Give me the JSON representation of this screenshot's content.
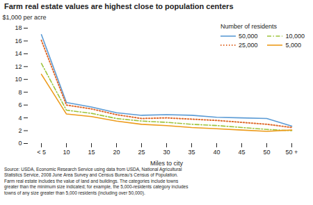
{
  "chart_data": {
    "type": "line",
    "title": "Farm real estate values are highest close to population centers",
    "xlabel": "Miles to city",
    "ylabel": "$1,000 per acre",
    "categories": [
      "< 5",
      "10",
      "15",
      "20",
      "25",
      "30",
      "35",
      "40",
      "45",
      "50",
      "50 +"
    ],
    "ylim": [
      0,
      18
    ],
    "yticks": [
      0,
      2,
      4,
      6,
      8,
      10,
      12,
      14,
      16,
      18
    ],
    "grid": false,
    "legend": "upper right",
    "legend_title": "Number of residents",
    "series": [
      {
        "name": "50,000",
        "color": "#5b9bd5",
        "line_style": "solid",
        "values": [
          17.0,
          6.4,
          5.7,
          4.8,
          4.4,
          4.5,
          4.4,
          4.1,
          4.0,
          3.9,
          2.7
        ]
      },
      {
        "name": "25,000",
        "color": "#e06c2e",
        "line_style": "dotted",
        "values": [
          16.1,
          6.0,
          5.4,
          4.5,
          3.9,
          4.0,
          3.8,
          3.6,
          3.3,
          3.0,
          2.5
        ]
      },
      {
        "name": "10,000",
        "color": "#9dc33b",
        "line_style": "dashdot",
        "values": [
          12.5,
          5.2,
          4.7,
          3.9,
          3.5,
          3.3,
          3.0,
          2.8,
          2.5,
          2.2,
          2.0
        ]
      },
      {
        "name": "5,000",
        "color": "#ed9b1b",
        "line_style": "solid",
        "values": [
          10.8,
          4.6,
          4.2,
          3.5,
          3.0,
          2.8,
          2.5,
          2.3,
          2.1,
          1.9,
          2.1
        ]
      }
    ],
    "footnote": "Source: USDA, Economic Research Service using data from USDA, National Agricultural\nStatistics Service, 2008 June Area Survey and Census Bureau’s Census of Population.\nFarm real estate includes the value of land and buildings. The categories include towns\ngreater than the minimum size indicated; for example, the 5,000-residents category includes\ntowns of any size greater than 5,000 residents (including over 50,000)."
  }
}
